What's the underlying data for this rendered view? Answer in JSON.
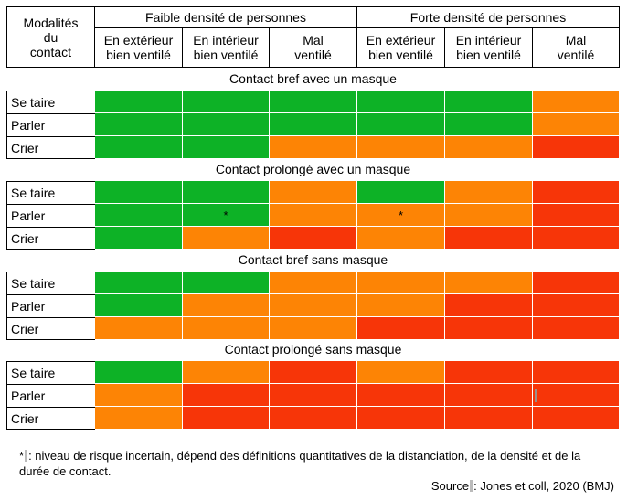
{
  "header": {
    "corner": "Modalités\ndu\ncontact",
    "groups": [
      "Faible densité de personnes",
      "Forte densité de personnes"
    ],
    "columns": [
      "En extérieur\nbien ventilé",
      "En intérieur\nbien ventilé",
      "Mal\nventilé",
      "En extérieur\nbien ventilé",
      "En intérieur\nbien ventilé",
      "Mal\nventilé"
    ]
  },
  "colors": {
    "green": "#0db226",
    "orange": "#fd8405",
    "red": "#f73508"
  },
  "sections": [
    {
      "title": "Contact bref avec un masque",
      "rows": [
        {
          "label": "Se taire",
          "cells": [
            "green",
            "green",
            "green",
            "green",
            "green",
            "orange"
          ],
          "marks": [
            "",
            "",
            "",
            "",
            "",
            ""
          ]
        },
        {
          "label": "Parler",
          "cells": [
            "green",
            "green",
            "green",
            "green",
            "green",
            "orange"
          ],
          "marks": [
            "",
            "",
            "",
            "",
            "",
            ""
          ]
        },
        {
          "label": "Crier",
          "cells": [
            "green",
            "green",
            "orange",
            "orange",
            "orange",
            "red"
          ],
          "marks": [
            "",
            "",
            "",
            "",
            "",
            ""
          ]
        }
      ]
    },
    {
      "title": "Contact prolongé avec un masque",
      "rows": [
        {
          "label": "Se taire",
          "cells": [
            "green",
            "green",
            "orange",
            "green",
            "orange",
            "red"
          ],
          "marks": [
            "",
            "",
            "",
            "",
            "",
            ""
          ]
        },
        {
          "label": "Parler",
          "cells": [
            "green",
            "green",
            "orange",
            "orange",
            "orange",
            "red"
          ],
          "marks": [
            "",
            "*",
            "",
            "*",
            "",
            ""
          ]
        },
        {
          "label": "Crier",
          "cells": [
            "green",
            "orange",
            "red",
            "orange",
            "red",
            "red"
          ],
          "marks": [
            "",
            "",
            "",
            "",
            "",
            ""
          ]
        }
      ]
    },
    {
      "title": "Contact bref sans masque",
      "rows": [
        {
          "label": "Se taire",
          "cells": [
            "green",
            "green",
            "orange",
            "orange",
            "orange",
            "red"
          ],
          "marks": [
            "",
            "",
            "",
            "",
            "",
            ""
          ]
        },
        {
          "label": "Parler",
          "cells": [
            "green",
            "orange",
            "orange",
            "orange",
            "red",
            "red"
          ],
          "marks": [
            "",
            "",
            "",
            "",
            "",
            ""
          ]
        },
        {
          "label": "Crier",
          "cells": [
            "orange",
            "orange",
            "orange",
            "red",
            "red",
            "red"
          ],
          "marks": [
            "",
            "",
            "",
            "",
            "",
            ""
          ]
        }
      ]
    },
    {
      "title": "Contact prolongé sans masque",
      "rows": [
        {
          "label": "Se taire",
          "cells": [
            "green",
            "orange",
            "red",
            "orange",
            "red",
            "red"
          ],
          "marks": [
            "",
            "",
            "",
            "",
            "",
            ""
          ]
        },
        {
          "label": "Parler",
          "cells": [
            "orange",
            "red",
            "red",
            "red",
            "red",
            "red"
          ],
          "marks": [
            "",
            "",
            "",
            "",
            "",
            ""
          ]
        },
        {
          "label": "Crier",
          "cells": [
            "orange",
            "red",
            "red",
            "red",
            "red",
            "red"
          ],
          "marks": [
            "",
            "",
            "",
            "",
            "",
            ""
          ]
        }
      ]
    }
  ],
  "footnote": {
    "star": "*",
    "text": ": niveau de risque incertain, dépend des définitions quantitatives de la distanciation, de la densité et de la durée de contact.",
    "source_label": "Source",
    "source_text": ": Jones et coll, 2020 (BMJ)"
  }
}
